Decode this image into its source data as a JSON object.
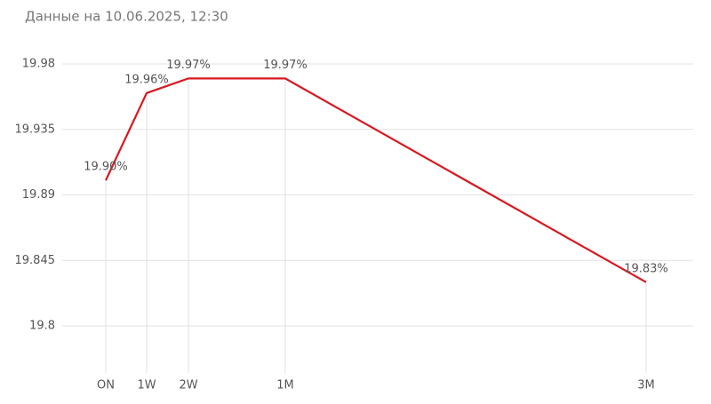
{
  "chart_data": {
    "type": "line",
    "title": "Данные на 10.06.2025, 12:30",
    "categories": [
      "ON",
      "1W",
      "2W",
      "1M",
      "3M"
    ],
    "values": [
      19.9,
      19.96,
      19.97,
      19.97,
      19.83
    ],
    "value_labels": [
      "19.90%",
      "19.96%",
      "19.97%",
      "19.97%",
      "19.83%"
    ],
    "color": "#d71920",
    "ylim": [
      19.8,
      19.98
    ],
    "yticks": [
      19.8,
      19.845,
      19.89,
      19.935,
      19.98
    ],
    "grid": true
  }
}
